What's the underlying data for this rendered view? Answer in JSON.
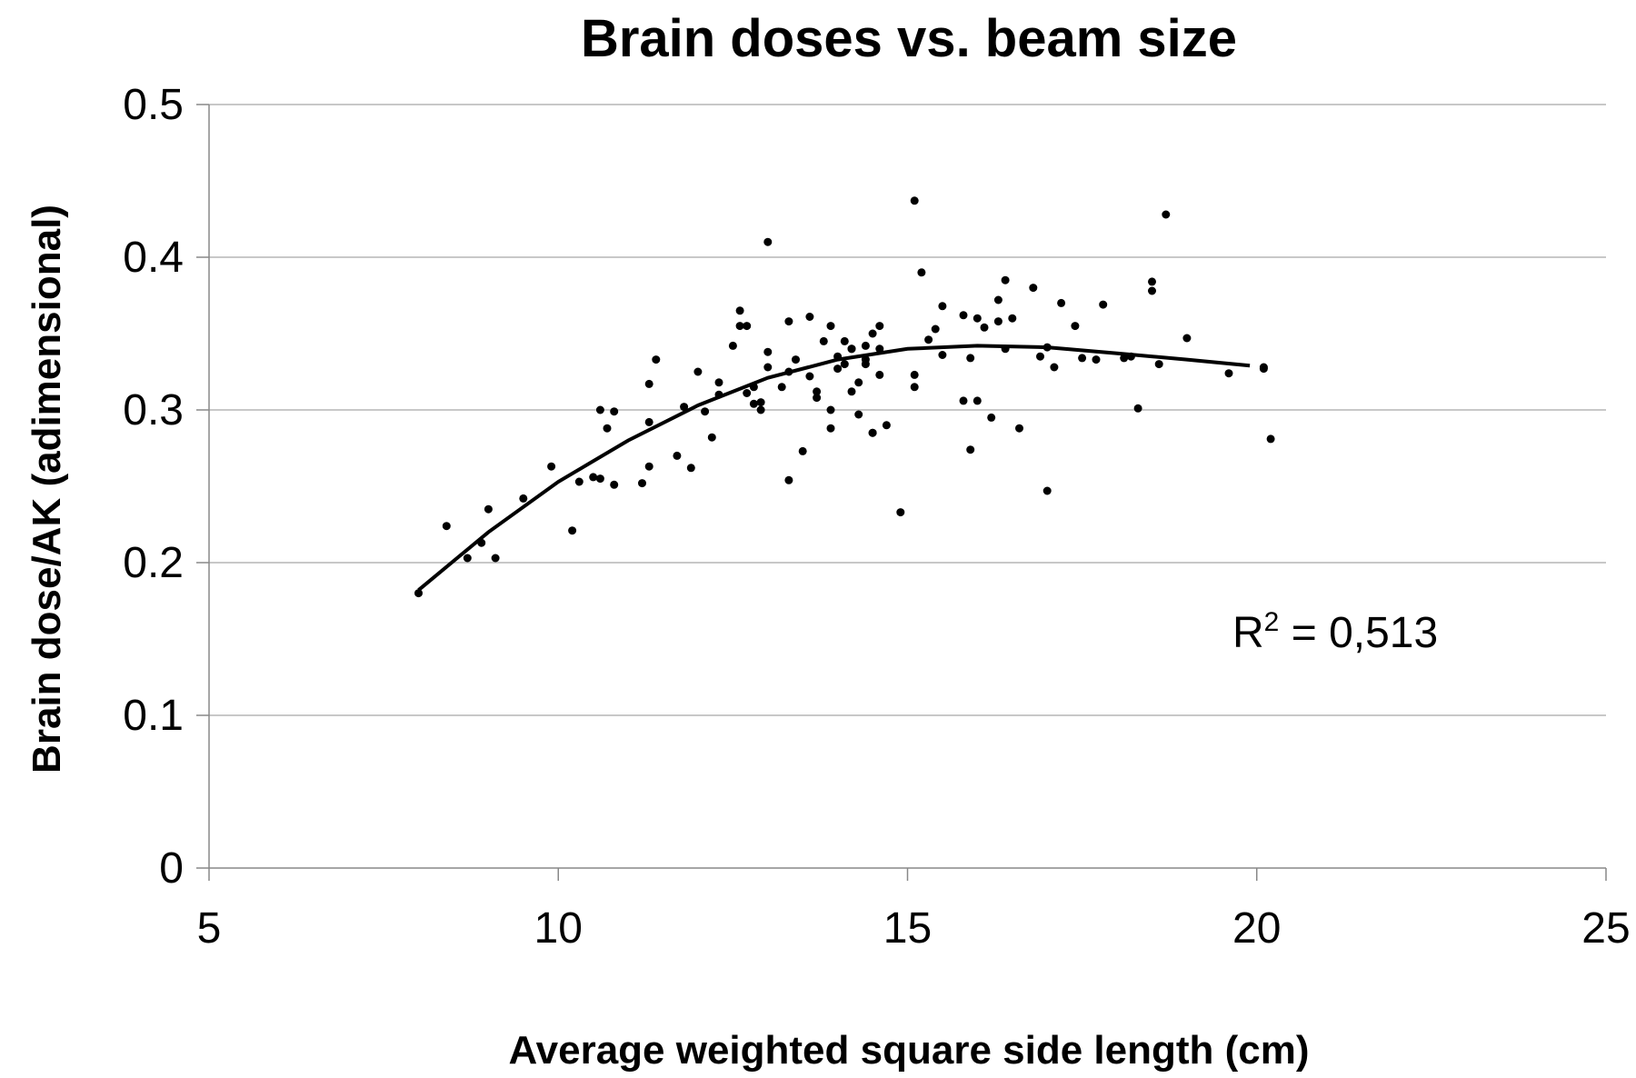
{
  "chart_data": {
    "type": "scatter",
    "title": "Brain doses vs. beam size",
    "xlabel": "Average weighted square side length (cm)",
    "ylabel": "Brain dose/AK (adimensional)",
    "xlim": [
      5,
      25
    ],
    "ylim": [
      0,
      0.5
    ],
    "xticks": [
      "5",
      "10",
      "15",
      "20",
      "25"
    ],
    "yticks": [
      "0",
      "0.1",
      "0.2",
      "0.3",
      "0.4",
      "0.5"
    ],
    "grid": "horizontal",
    "legend": "none",
    "point_color": "#000000",
    "trendline": {
      "type": "polynomial-2",
      "x_range": [
        8.0,
        19.9
      ],
      "points": [
        [
          8.0,
          0.182
        ],
        [
          9.0,
          0.22
        ],
        [
          10.0,
          0.253
        ],
        [
          11.0,
          0.28
        ],
        [
          12.0,
          0.303
        ],
        [
          13.0,
          0.321
        ],
        [
          14.0,
          0.333
        ],
        [
          15.0,
          0.34
        ],
        [
          16.0,
          0.342
        ],
        [
          17.0,
          0.341
        ],
        [
          18.0,
          0.337
        ],
        [
          19.0,
          0.333
        ],
        [
          19.9,
          0.329
        ]
      ],
      "annotation_main": "R",
      "annotation_sup": "2",
      "annotation_rest": " = 0,513"
    },
    "points": [
      [
        8.0,
        0.18
      ],
      [
        8.4,
        0.224
      ],
      [
        8.7,
        0.203
      ],
      [
        8.9,
        0.213
      ],
      [
        9.0,
        0.235
      ],
      [
        9.1,
        0.203
      ],
      [
        9.5,
        0.242
      ],
      [
        9.9,
        0.263
      ],
      [
        10.2,
        0.221
      ],
      [
        10.3,
        0.253
      ],
      [
        10.5,
        0.256
      ],
      [
        10.6,
        0.3
      ],
      [
        10.6,
        0.255
      ],
      [
        10.7,
        0.288
      ],
      [
        10.8,
        0.251
      ],
      [
        10.8,
        0.299
      ],
      [
        11.2,
        0.252
      ],
      [
        11.3,
        0.292
      ],
      [
        11.3,
        0.263
      ],
      [
        11.3,
        0.317
      ],
      [
        11.4,
        0.333
      ],
      [
        11.7,
        0.27
      ],
      [
        11.8,
        0.302
      ],
      [
        11.9,
        0.262
      ],
      [
        12.0,
        0.325
      ],
      [
        12.1,
        0.299
      ],
      [
        12.2,
        0.282
      ],
      [
        12.3,
        0.31
      ],
      [
        12.3,
        0.318
      ],
      [
        12.5,
        0.342
      ],
      [
        12.6,
        0.365
      ],
      [
        12.6,
        0.355
      ],
      [
        12.7,
        0.355
      ],
      [
        12.7,
        0.311
      ],
      [
        12.8,
        0.315
      ],
      [
        12.8,
        0.304
      ],
      [
        12.9,
        0.3
      ],
      [
        12.9,
        0.305
      ],
      [
        13.0,
        0.338
      ],
      [
        13.0,
        0.41
      ],
      [
        13.0,
        0.328
      ],
      [
        13.2,
        0.315
      ],
      [
        13.3,
        0.358
      ],
      [
        13.3,
        0.254
      ],
      [
        13.3,
        0.325
      ],
      [
        13.4,
        0.333
      ],
      [
        13.5,
        0.273
      ],
      [
        13.6,
        0.361
      ],
      [
        13.6,
        0.322
      ],
      [
        13.7,
        0.312
      ],
      [
        13.7,
        0.308
      ],
      [
        13.8,
        0.345
      ],
      [
        13.9,
        0.3
      ],
      [
        13.9,
        0.288
      ],
      [
        13.9,
        0.355
      ],
      [
        14.0,
        0.335
      ],
      [
        14.0,
        0.327
      ],
      [
        14.1,
        0.345
      ],
      [
        14.1,
        0.33
      ],
      [
        14.2,
        0.34
      ],
      [
        14.2,
        0.34
      ],
      [
        14.2,
        0.312
      ],
      [
        14.3,
        0.318
      ],
      [
        14.3,
        0.297
      ],
      [
        14.4,
        0.333
      ],
      [
        14.4,
        0.342
      ],
      [
        14.4,
        0.33
      ],
      [
        14.5,
        0.35
      ],
      [
        14.5,
        0.285
      ],
      [
        14.5,
        0.285
      ],
      [
        14.6,
        0.34
      ],
      [
        14.6,
        0.355
      ],
      [
        14.6,
        0.323
      ],
      [
        14.7,
        0.29
      ],
      [
        14.9,
        0.233
      ],
      [
        15.1,
        0.437
      ],
      [
        15.1,
        0.323
      ],
      [
        15.1,
        0.315
      ],
      [
        15.2,
        0.39
      ],
      [
        15.3,
        0.346
      ],
      [
        15.4,
        0.353
      ],
      [
        15.5,
        0.336
      ],
      [
        15.5,
        0.368
      ],
      [
        15.8,
        0.362
      ],
      [
        15.8,
        0.306
      ],
      [
        15.9,
        0.274
      ],
      [
        15.9,
        0.334
      ],
      [
        16.0,
        0.306
      ],
      [
        16.0,
        0.36
      ],
      [
        16.1,
        0.354
      ],
      [
        16.2,
        0.295
      ],
      [
        16.3,
        0.372
      ],
      [
        16.3,
        0.358
      ],
      [
        16.4,
        0.385
      ],
      [
        16.4,
        0.34
      ],
      [
        16.5,
        0.36
      ],
      [
        16.6,
        0.288
      ],
      [
        16.8,
        0.38
      ],
      [
        16.9,
        0.335
      ],
      [
        17.0,
        0.341
      ],
      [
        17.0,
        0.247
      ],
      [
        17.1,
        0.328
      ],
      [
        17.2,
        0.37
      ],
      [
        17.4,
        0.355
      ],
      [
        17.5,
        0.334
      ],
      [
        17.7,
        0.333
      ],
      [
        17.8,
        0.369
      ],
      [
        18.1,
        0.334
      ],
      [
        18.2,
        0.335
      ],
      [
        18.3,
        0.301
      ],
      [
        18.5,
        0.378
      ],
      [
        18.5,
        0.384
      ],
      [
        18.6,
        0.33
      ],
      [
        18.7,
        0.428
      ],
      [
        19.0,
        0.347
      ],
      [
        19.6,
        0.324
      ],
      [
        20.1,
        0.327
      ],
      [
        20.1,
        0.328
      ],
      [
        20.2,
        0.281
      ]
    ]
  }
}
